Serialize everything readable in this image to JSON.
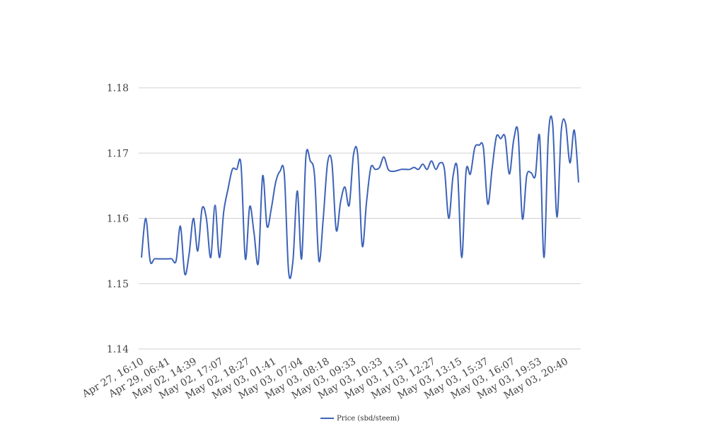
{
  "chart_data": {
    "type": "line",
    "ylim": [
      1.14,
      1.18
    ],
    "yticks": [
      "1.14",
      "1.15",
      "1.16",
      "1.17",
      "1.18"
    ],
    "x_tick_labels": [
      "Apr 27, 16:10",
      "Apr 29, 06:41",
      "May 02, 14:39",
      "May 02, 17:07",
      "May 02, 18:27",
      "May 03, 01:41",
      "May 03, 07:04",
      "May 03, 08:18",
      "May 03, 09:33",
      "May 03, 10:33",
      "May 03, 11:51",
      "May 03, 12:27",
      "May 03, 13:15",
      "May 03, 15:37",
      "May 03, 16:07",
      "May 03, 19:53",
      "May 03, 20:40"
    ],
    "grid": true,
    "legend_position": "bottom-center",
    "series": [
      {
        "name": "Price (sbd/steem)",
        "color": "#3d63b8",
        "values": [
          1.154,
          1.16,
          1.1535,
          1.1538,
          1.1538,
          1.1538,
          1.1538,
          1.1538,
          1.1535,
          1.1588,
          1.1515,
          1.1545,
          1.16,
          1.155,
          1.1615,
          1.16,
          1.154,
          1.162,
          1.154,
          1.161,
          1.1645,
          1.1675,
          1.1675,
          1.1682,
          1.1538,
          1.1618,
          1.1578,
          1.1532,
          1.1665,
          1.1588,
          1.1615,
          1.1655,
          1.1672,
          1.1668,
          1.1518,
          1.1535,
          1.1642,
          1.1538,
          1.1695,
          1.1688,
          1.1665,
          1.1535,
          1.16,
          1.1685,
          1.1685,
          1.1582,
          1.1625,
          1.1648,
          1.162,
          1.1698,
          1.1695,
          1.1558,
          1.1625,
          1.1678,
          1.1675,
          1.1678,
          1.1694,
          1.1675,
          1.1672,
          1.1673,
          1.1675,
          1.1675,
          1.1675,
          1.1678,
          1.1675,
          1.1683,
          1.1675,
          1.1688,
          1.1675,
          1.1685,
          1.1675,
          1.16,
          1.1665,
          1.1675,
          1.154,
          1.1672,
          1.1668,
          1.1708,
          1.1712,
          1.1708,
          1.1622,
          1.1675,
          1.1725,
          1.1722,
          1.1725,
          1.1668,
          1.172,
          1.1732,
          1.16,
          1.1665,
          1.167,
          1.1665,
          1.1725,
          1.154,
          1.1725,
          1.1745,
          1.1602,
          1.1735,
          1.1745,
          1.1685,
          1.1735,
          1.1655
        ]
      }
    ]
  }
}
